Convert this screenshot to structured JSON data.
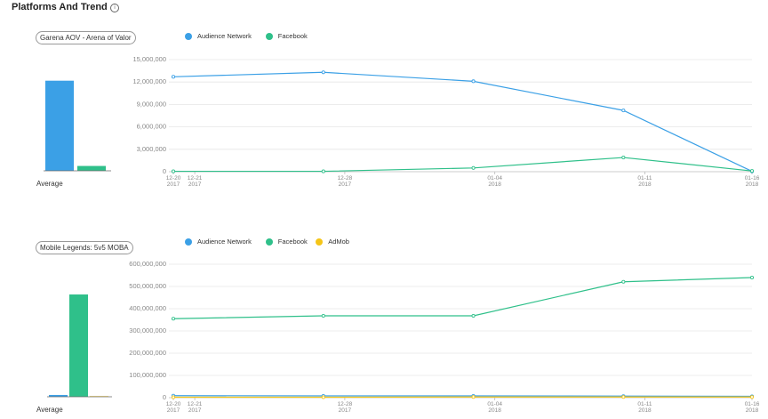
{
  "title": "Platforms And Trend",
  "chart_data": [
    {
      "type": "bar",
      "title": "Garena AOV - Arena of Valor",
      "categories": [
        "Average"
      ],
      "series": [
        {
          "color": "#3ba0e6",
          "values": [
            9300000
          ]
        },
        {
          "color": "#2fc08a",
          "values": [
            500000
          ]
        }
      ],
      "ylim": [
        0,
        11200000
      ]
    },
    {
      "type": "line",
      "x": [
        "2017-12-20",
        "2017-12-27",
        "2018-01-03",
        "2018-01-10",
        "2018-01-16"
      ],
      "xlim": [
        "2017-12-20",
        "2018-01-16"
      ],
      "xticks": [
        {
          "value": "2017-12-20",
          "label": "12-20\n2017"
        },
        {
          "value": "2017-12-21",
          "label": "12-21\n2017"
        },
        {
          "value": "2017-12-28",
          "label": "12-28\n2017"
        },
        {
          "value": "2018-01-04",
          "label": "01-04\n2018"
        },
        {
          "value": "2018-01-11",
          "label": "01-11\n2018"
        },
        {
          "value": "2018-01-16",
          "label": "01-16\n2018"
        }
      ],
      "ylim": [
        0,
        15000000
      ],
      "yticks": [
        0,
        {
          "value": 3000000,
          "label": "3,000,000"
        },
        {
          "value": 6000000,
          "label": "6,000,000"
        },
        {
          "value": 9000000,
          "label": "9,000,000"
        },
        {
          "value": 12000000,
          "label": "12,000,000"
        },
        {
          "value": 15000000,
          "label": "15,000,000"
        }
      ],
      "grid": true,
      "series": [
        {
          "name": "Audience Network",
          "color": "#3ba0e6",
          "values": [
            12700000,
            13300000,
            12100000,
            8200000,
            50000
          ]
        },
        {
          "name": "Facebook",
          "color": "#2fc08a",
          "values": [
            50000,
            50000,
            500000,
            1900000,
            100000
          ]
        }
      ]
    },
    {
      "type": "bar",
      "title": "Mobile Legends: 5v5 MOBA",
      "categories": [
        "Average"
      ],
      "series": [
        {
          "color": "#3ba0e6",
          "values": [
            7600000
          ]
        },
        {
          "color": "#2fc08a",
          "values": [
            430000000
          ]
        },
        {
          "color": "#f5c518",
          "values": [
            2600000
          ]
        }
      ],
      "ylim": [
        0,
        546000000
      ]
    },
    {
      "type": "line",
      "x": [
        "2017-12-20",
        "2017-12-27",
        "2018-01-03",
        "2018-01-10",
        "2018-01-16"
      ],
      "xlim": [
        "2017-12-20",
        "2018-01-16"
      ],
      "xticks": [
        {
          "value": "2017-12-20",
          "label": "12-20\n2017"
        },
        {
          "value": "2017-12-21",
          "label": "12-21\n2017"
        },
        {
          "value": "2017-12-28",
          "label": "12-28\n2017"
        },
        {
          "value": "2018-01-04",
          "label": "01-04\n2018"
        },
        {
          "value": "2018-01-11",
          "label": "01-11\n2018"
        },
        {
          "value": "2018-01-16",
          "label": "01-16\n2018"
        }
      ],
      "ylim": [
        0,
        600000000
      ],
      "yticks": [
        0,
        {
          "value": 100000000,
          "label": "100,000,000"
        },
        {
          "value": 200000000,
          "label": "200,000,000"
        },
        {
          "value": 300000000,
          "label": "300,000,000"
        },
        {
          "value": 400000000,
          "label": "400,000,000"
        },
        {
          "value": 500000000,
          "label": "500,000,000"
        },
        {
          "value": 600000000,
          "label": "600,000,000"
        }
      ],
      "grid": true,
      "series": [
        {
          "name": "Audience Network",
          "color": "#3ba0e6",
          "values": [
            9000000,
            8000000,
            8000000,
            7000000,
            6000000
          ]
        },
        {
          "name": "Facebook",
          "color": "#2fc08a",
          "values": [
            355000000,
            368000000,
            368000000,
            521000000,
            540000000
          ]
        },
        {
          "name": "AdMob",
          "color": "#f5c518",
          "values": [
            2000000,
            2000000,
            3000000,
            3000000,
            3000000
          ]
        }
      ]
    }
  ]
}
